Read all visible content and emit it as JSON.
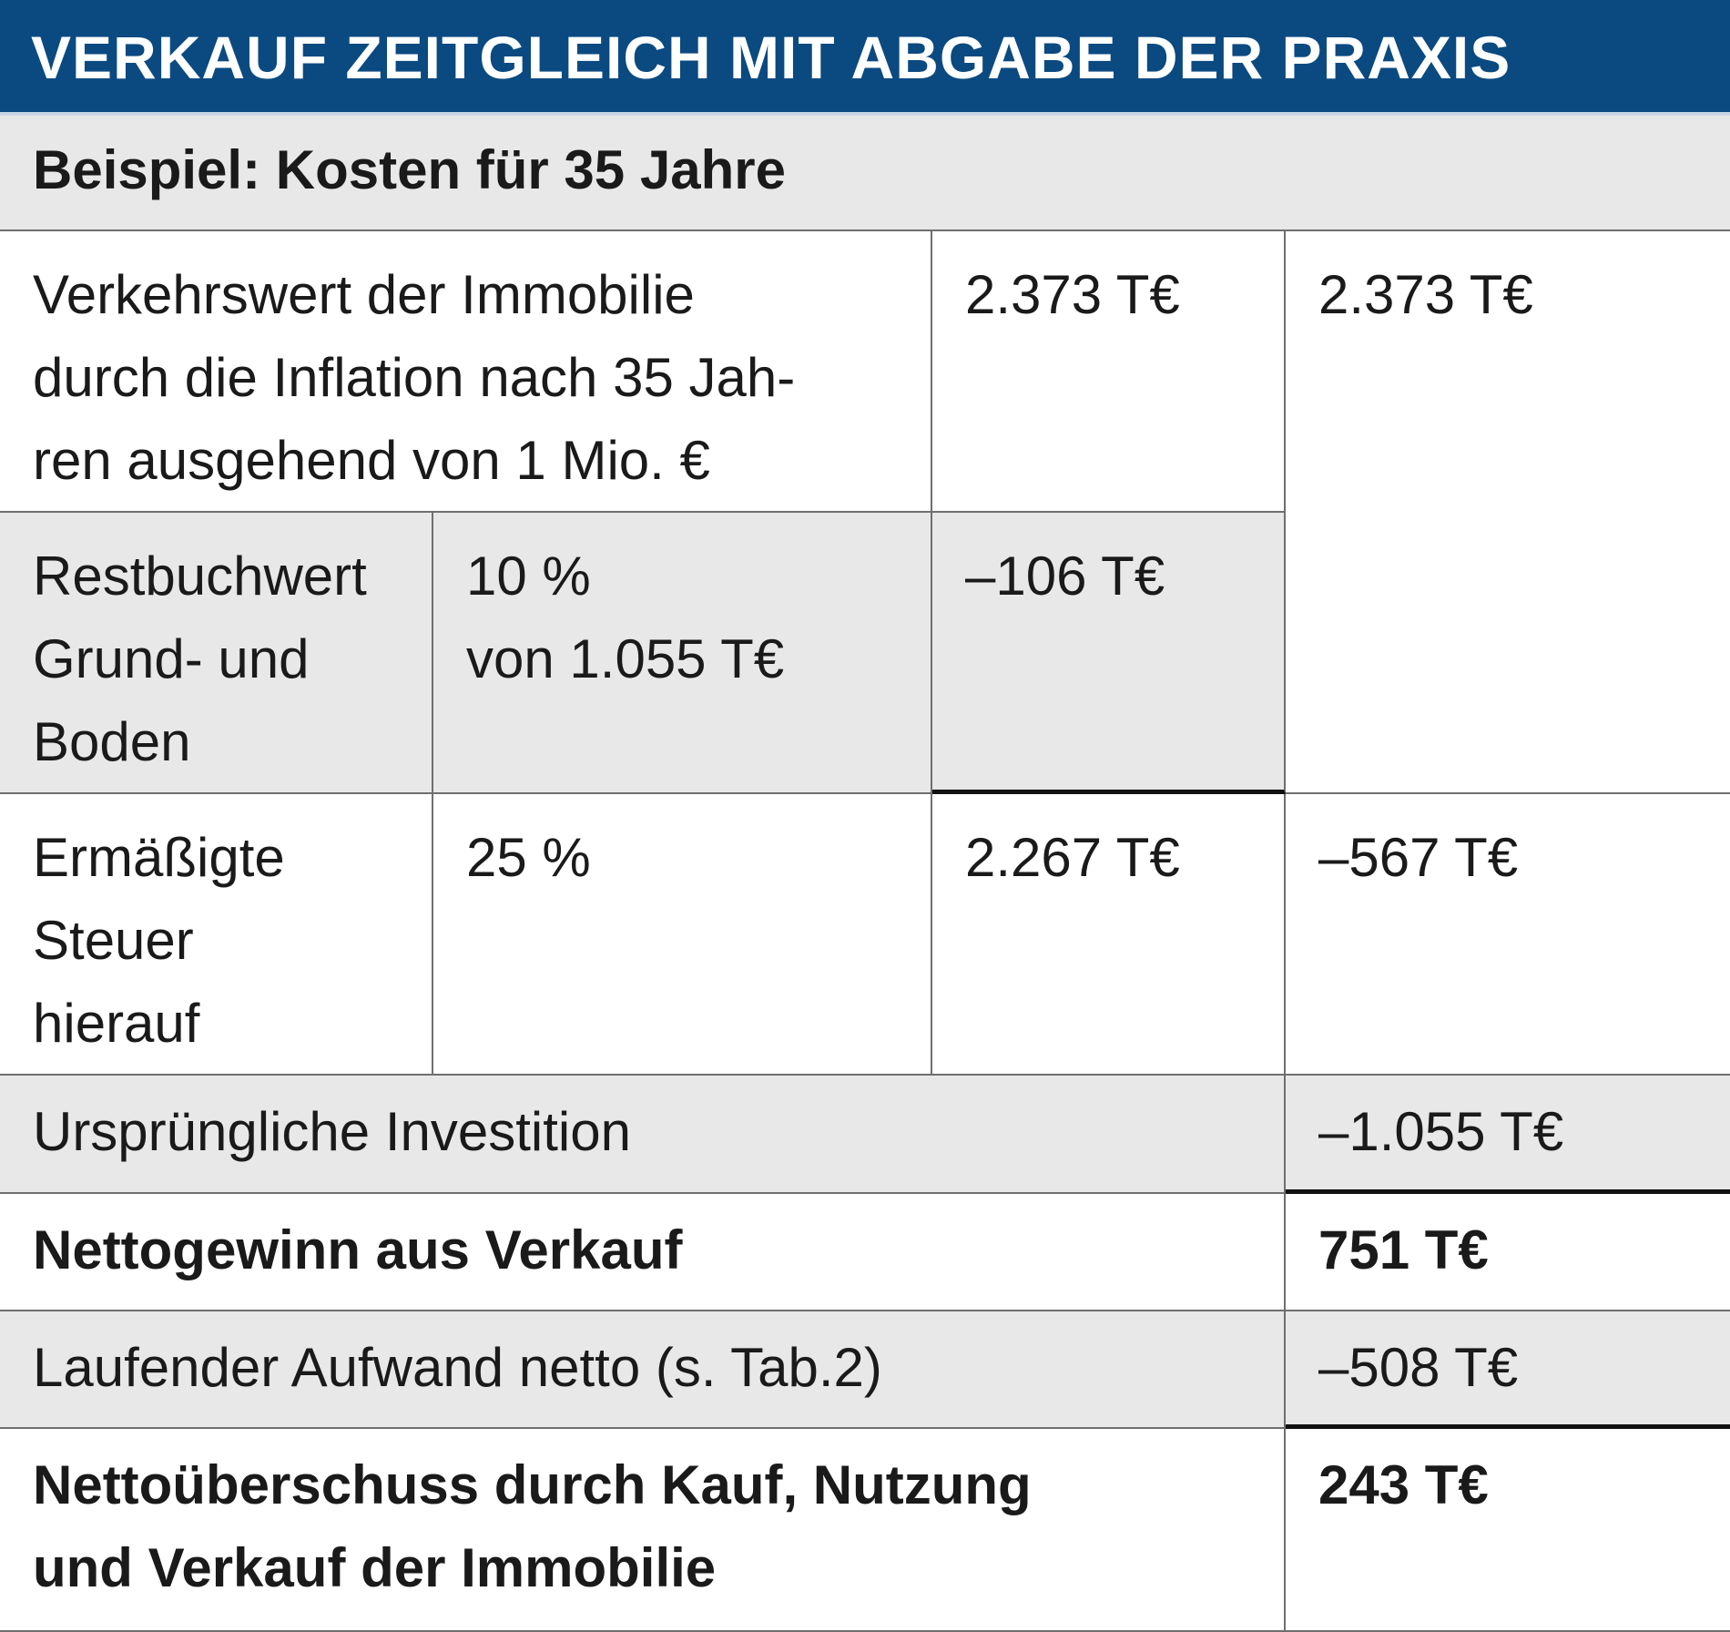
{
  "title": "VERKAUF ZEITGLEICH MIT ABGABE DER PRAXIS",
  "subtitle": "Beispiel: Kosten für 35 Jahre",
  "rows": [
    {
      "label": "Verkehrswert der Immobilie\ndurch die Inflation nach 35 Jah-\nren ausgehend von 1 Mio. €",
      "value": "2.373 T€",
      "total": "2.373 T€"
    },
    {
      "label": "Restbuchwert\nGrund- und\nBoden",
      "rate": "10 %\nvon 1.055 T€",
      "value": "–106 T€"
    },
    {
      "label": "Ermäßigte\nSteuer\nhierauf",
      "rate": "25 %",
      "value": "2.267 T€",
      "total": "–567 T€"
    },
    {
      "label": "Ursprüngliche Investition",
      "total": "–1.055 T€"
    },
    {
      "label": "Nettogewinn aus Verkauf",
      "total": "751 T€"
    },
    {
      "label": "Laufender Aufwand netto (s. Tab.2)",
      "total": "–508 T€"
    },
    {
      "label": "Nettoüberschuss durch Kauf, Nutzung\nund Verkauf der Immobilie",
      "total": "243 T€"
    }
  ]
}
